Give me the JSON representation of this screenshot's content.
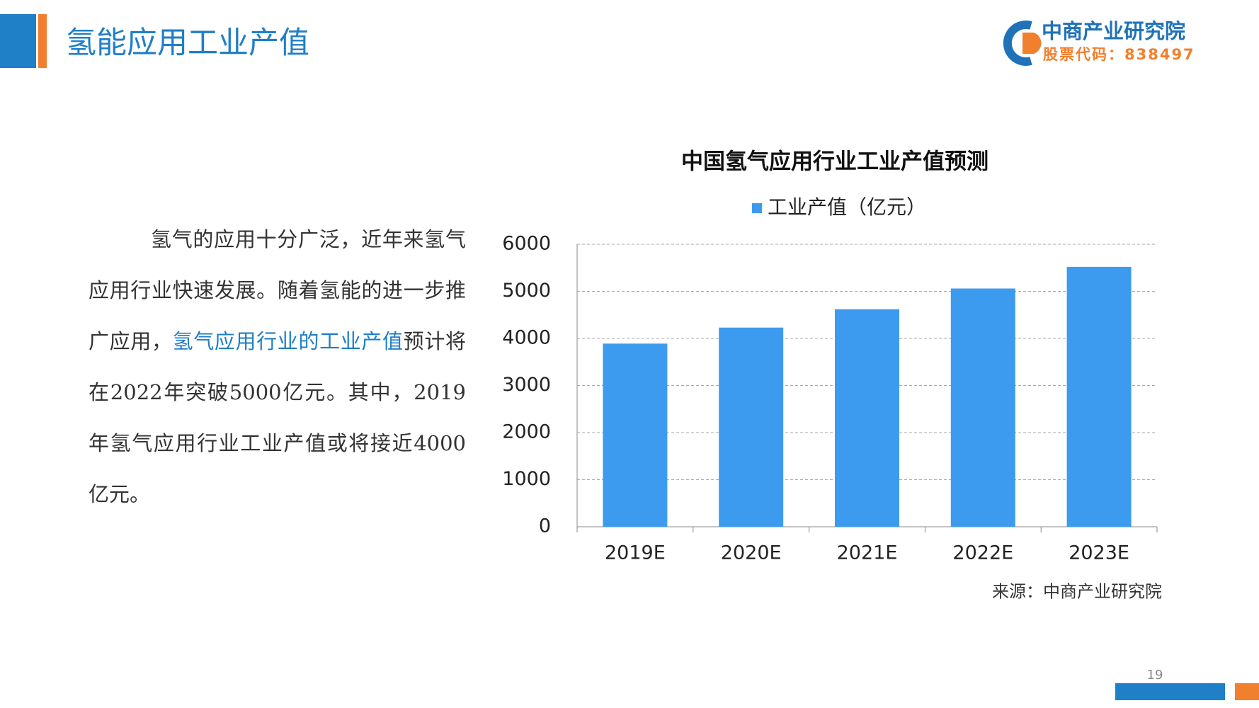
{
  "header": {
    "title": "氢能应用工业产值"
  },
  "logo": {
    "name": "中商产业研究院",
    "stock": "股票代码：838497"
  },
  "text": {
    "segments": [
      {
        "text": "氢气的应用十分广泛，近年来氢气应用行业快速发展。随着氢能的进一步推广应用，",
        "color": "#333333"
      },
      {
        "text": "氢气应用行业的工业产值",
        "color": "#1f7fc7"
      },
      {
        "text": "预计将在2022年突破5000亿元。其中，2019年氢气应用行业工业产值或将接近4000亿元。",
        "color": "#333333"
      }
    ]
  },
  "chart_data": {
    "type": "bar",
    "title": "中国氢气应用行业工业产值预测",
    "categories": [
      "2019E",
      "2020E",
      "2021E",
      "2022E",
      "2023E"
    ],
    "series": [
      {
        "name": "工业产值（亿元）",
        "color": "#3d9bef",
        "values": [
          3890,
          4230,
          4620,
          5060,
          5520
        ]
      }
    ],
    "ylim": [
      0,
      6000
    ],
    "yticks": [
      0,
      1000,
      2000,
      3000,
      4000,
      5000,
      6000
    ],
    "grid": true,
    "source": "来源：中商产业研究院"
  },
  "page_number": "19"
}
